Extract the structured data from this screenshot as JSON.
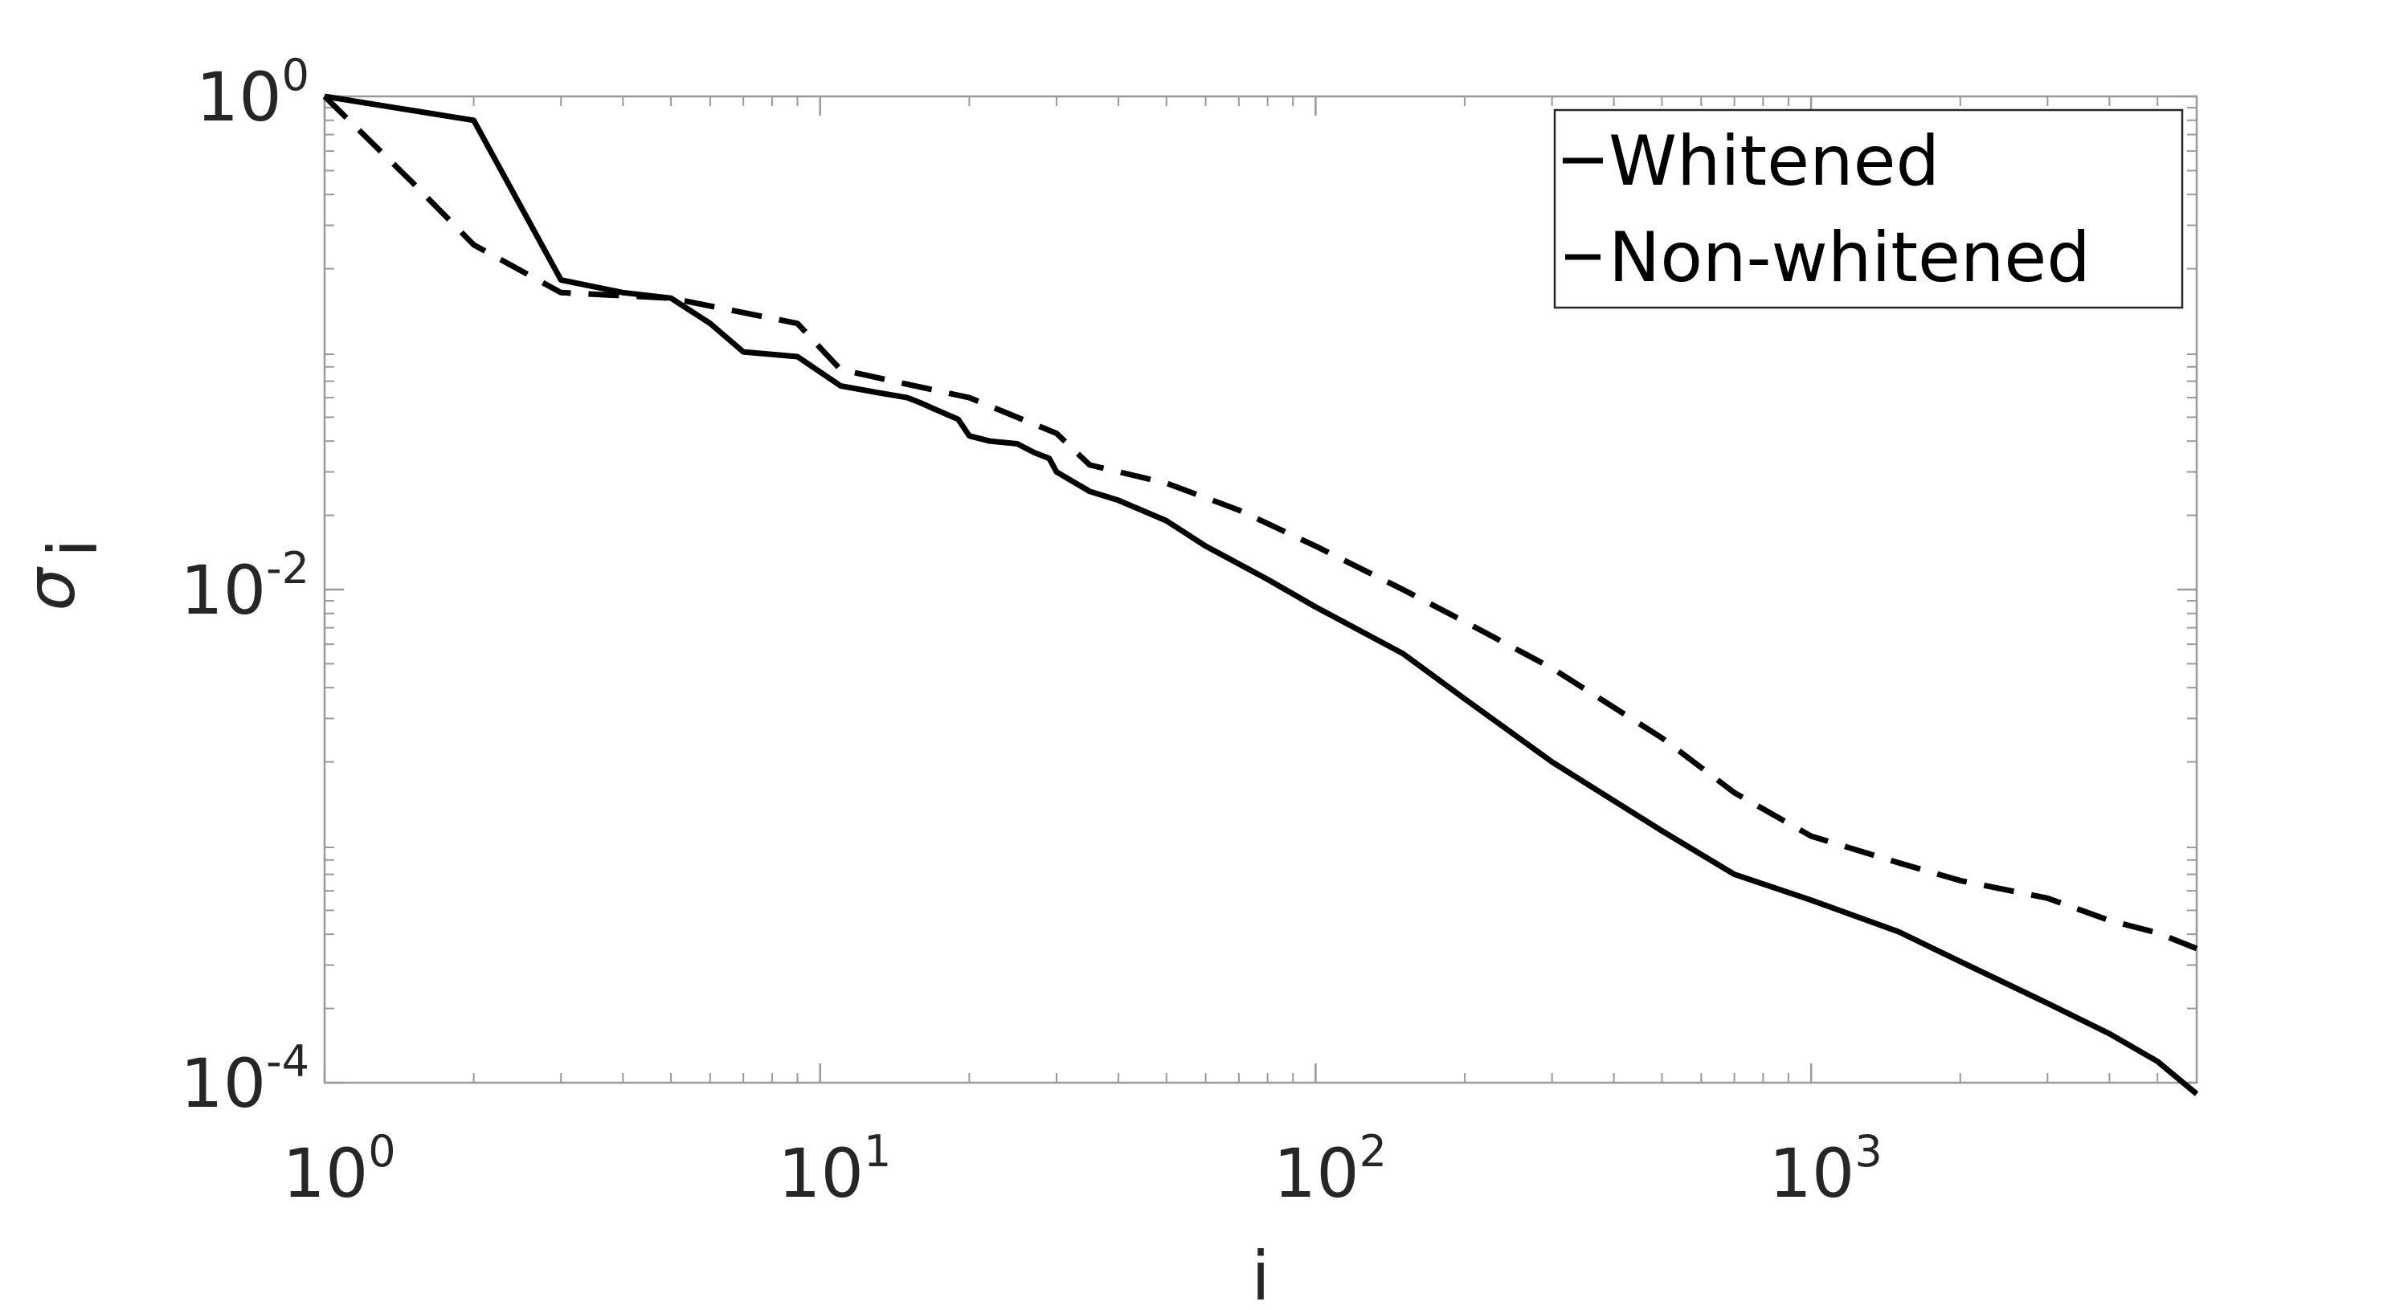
{
  "colors": {
    "axis": "#262626",
    "box": "#999999",
    "line": "#000000",
    "legend_border": "#262626",
    "background": "#ffffff"
  },
  "chart_data": {
    "type": "line",
    "title": "",
    "xlabel": "i",
    "ylabel": "σ",
    "ylabel_subscript": "i",
    "xscale": "log",
    "yscale": "log",
    "xlim": [
      1,
      6000
    ],
    "ylim": [
      0.0001,
      1
    ],
    "grid": false,
    "legend_position": "top-right",
    "x_ticks": [
      {
        "value": 1,
        "base": "10",
        "exp": "0"
      },
      {
        "value": 10,
        "base": "10",
        "exp": "1"
      },
      {
        "value": 100,
        "base": "10",
        "exp": "2"
      },
      {
        "value": 1000,
        "base": "10",
        "exp": "3"
      }
    ],
    "y_ticks": [
      {
        "value": 1,
        "base": "10",
        "exp": "0"
      },
      {
        "value": 0.01,
        "base": "10",
        "exp": "-2"
      },
      {
        "value": 0.0001,
        "base": "10",
        "exp": "-4"
      }
    ],
    "series": [
      {
        "name": "Whitened",
        "dash": "solid",
        "points": [
          [
            1,
            1.0
          ],
          [
            2,
            0.8
          ],
          [
            3,
            0.18
          ],
          [
            4,
            0.16
          ],
          [
            5,
            0.152
          ],
          [
            6,
            0.12
          ],
          [
            7,
            0.092
          ],
          [
            9,
            0.088
          ],
          [
            11,
            0.067
          ],
          [
            13,
            0.063
          ],
          [
            15,
            0.06
          ],
          [
            16,
            0.057
          ],
          [
            17,
            0.054
          ],
          [
            19,
            0.049
          ],
          [
            20,
            0.042
          ],
          [
            22,
            0.04
          ],
          [
            25,
            0.039
          ],
          [
            27,
            0.036
          ],
          [
            29,
            0.034
          ],
          [
            30,
            0.03
          ],
          [
            35,
            0.025
          ],
          [
            40,
            0.023
          ],
          [
            50,
            0.019
          ],
          [
            60,
            0.015
          ],
          [
            80,
            0.011
          ],
          [
            100,
            0.0085
          ],
          [
            150,
            0.0055
          ],
          [
            200,
            0.0036
          ],
          [
            300,
            0.002
          ],
          [
            500,
            0.00105
          ],
          [
            700,
            0.0007
          ],
          [
            1000,
            0.00055
          ],
          [
            1500,
            0.00041
          ],
          [
            2000,
            0.00031
          ],
          [
            3000,
            0.00021
          ],
          [
            4000,
            0.000158
          ],
          [
            5000,
            0.000122
          ],
          [
            6000,
            9e-05
          ]
        ]
      },
      {
        "name": "Non-whitened",
        "dash": "dashed",
        "points": [
          [
            1,
            1.0
          ],
          [
            1.5,
            0.45
          ],
          [
            2,
            0.25
          ],
          [
            3,
            0.16
          ],
          [
            5,
            0.152
          ],
          [
            9,
            0.12
          ],
          [
            11,
            0.078
          ],
          [
            15,
            0.068
          ],
          [
            20,
            0.06
          ],
          [
            30,
            0.043
          ],
          [
            35,
            0.032
          ],
          [
            50,
            0.027
          ],
          [
            70,
            0.021
          ],
          [
            100,
            0.015
          ],
          [
            150,
            0.01
          ],
          [
            200,
            0.0074
          ],
          [
            300,
            0.0048
          ],
          [
            500,
            0.0025
          ],
          [
            700,
            0.0015
          ],
          [
            1000,
            0.001
          ],
          [
            1500,
            0.00078
          ],
          [
            2000,
            0.00066
          ],
          [
            3000,
            0.00056
          ],
          [
            4000,
            0.000455
          ],
          [
            5000,
            0.000405
          ],
          [
            6000,
            0.00035
          ]
        ]
      }
    ]
  }
}
